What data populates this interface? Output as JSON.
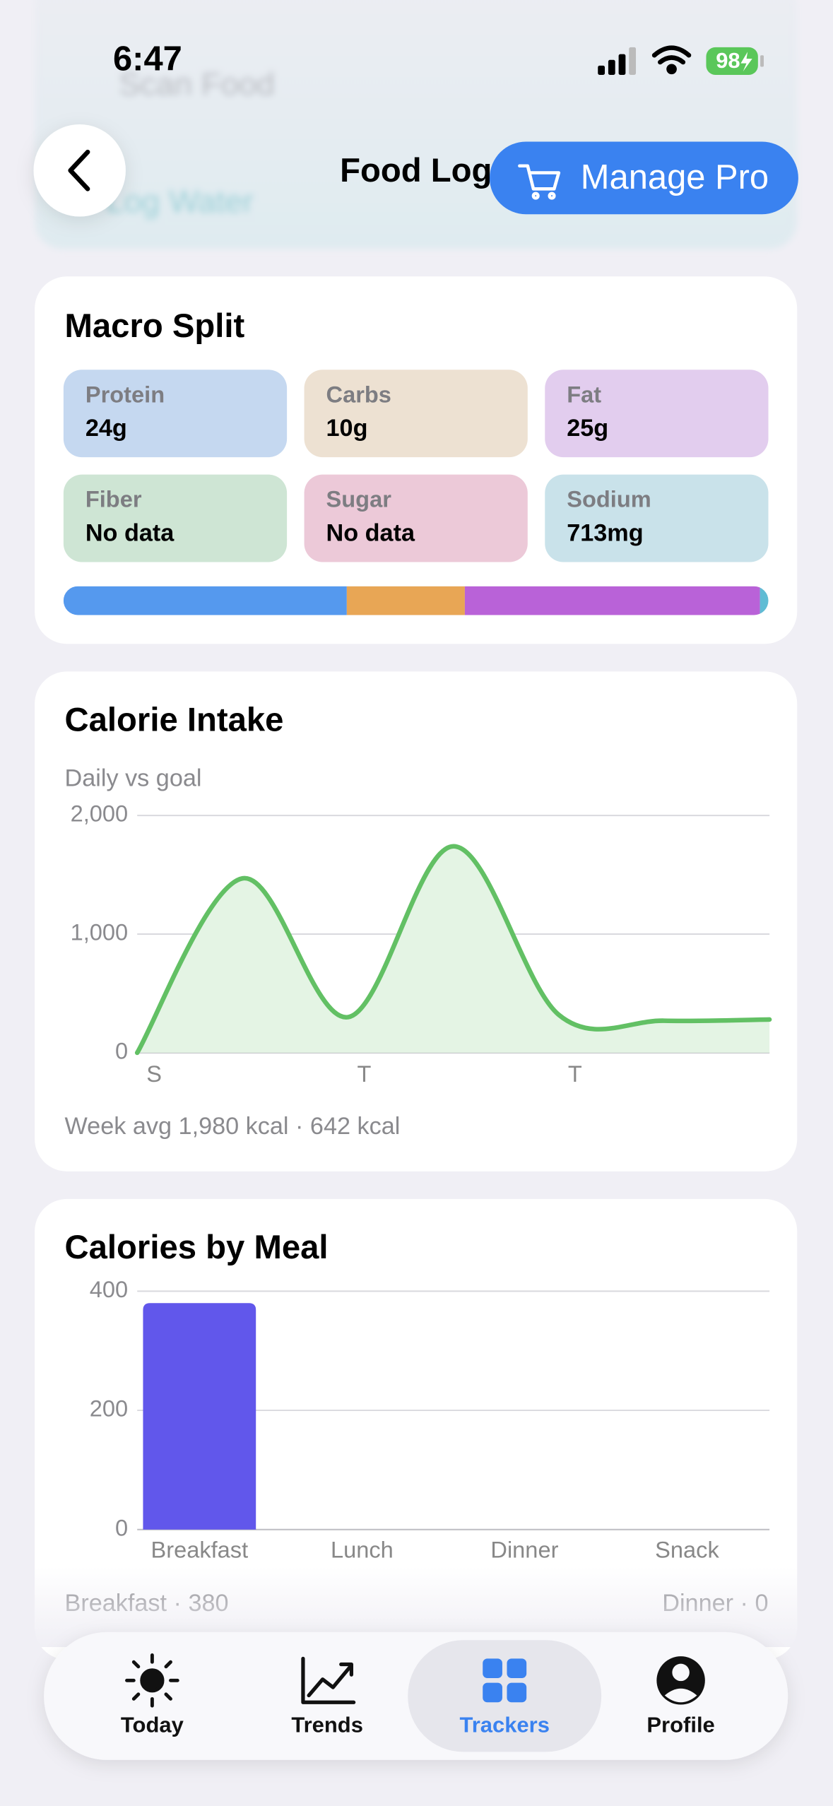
{
  "status_bar": {
    "time": "6:47",
    "battery": "98"
  },
  "header": {
    "title": "Food Log",
    "button": "Manage Pro",
    "behind": [
      "Scan Food",
      "Log Water"
    ]
  },
  "macro_split": {
    "title": "Macro Split",
    "macros": [
      {
        "name": "Protein",
        "value": 24,
        "value_label": "24g",
        "color": "#c5d8f0",
        "bar_color": "#5599ee"
      },
      {
        "name": "Carbs",
        "value": 10,
        "value_label": "10g",
        "color": "#ede1d2",
        "bar_color": "#e8a655"
      },
      {
        "name": "Fat",
        "value": 25,
        "value_label": "25g",
        "color": "#e2cdee",
        "bar_color": "#b962d8"
      },
      {
        "name": "Fiber",
        "value": null,
        "value_label": "No data",
        "color": "#cee5d4"
      },
      {
        "name": "Sugar",
        "value": null,
        "value_label": "No data",
        "color": "#ecc9d8"
      },
      {
        "name": "Sodium",
        "value": 0.713,
        "value_label": "713mg",
        "color": "#c9e2ea",
        "bar_color": "#60bcd4"
      }
    ]
  },
  "chart_data": [
    {
      "type": "line",
      "title": "Calorie Intake",
      "subtitle": "Daily vs goal",
      "categories": [
        "S",
        null,
        "T",
        null,
        "T",
        null,
        null
      ],
      "values": [
        0,
        1470,
        300,
        1740,
        320,
        270,
        280
      ],
      "color": "#62c064",
      "fill_color": "#e4f4e4",
      "ylim": [
        0,
        2000
      ],
      "yticks": [
        0,
        {
          "value": 1000,
          "label": "1,000"
        },
        {
          "value": 2000,
          "label": "2,000"
        }
      ],
      "grid": true,
      "footer": "Week avg 1,980 kcal · 642 kcal"
    },
    {
      "type": "bar",
      "title": "Calories by Meal",
      "categories": [
        "Breakfast",
        "Lunch",
        "Dinner",
        "Snack"
      ],
      "values": [
        380,
        0,
        0,
        0
      ],
      "color": "#6157eb",
      "ylim": [
        0,
        400
      ],
      "yticks": [
        0,
        200,
        400
      ],
      "grid": true,
      "footer_left": "Breakfast · 380",
      "footer_right": "Dinner · 0"
    }
  ],
  "nav": {
    "items": [
      "Today",
      "Trends",
      "Trackers",
      "Profile"
    ],
    "active": 2
  }
}
